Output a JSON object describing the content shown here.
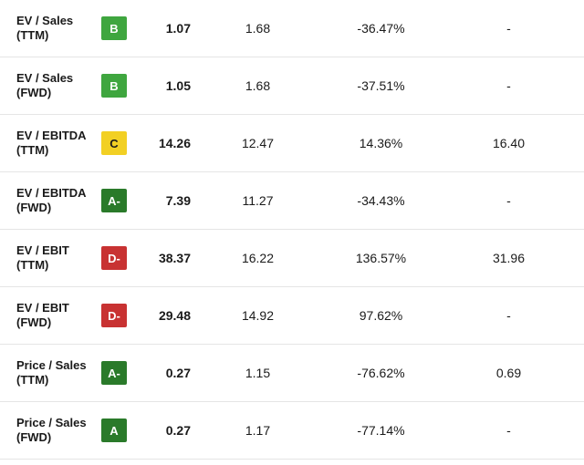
{
  "grade_colors": {
    "B": {
      "bg": "#3fa63f",
      "fg": "#ffffff"
    },
    "C": {
      "bg": "#f2d024",
      "fg": "#1a1a1a"
    },
    "A-": {
      "bg": "#2a7a2a",
      "fg": "#ffffff"
    },
    "A": {
      "bg": "#2a7a2a",
      "fg": "#ffffff"
    },
    "D-": {
      "bg": "#c83232",
      "fg": "#ffffff"
    }
  },
  "rows": [
    {
      "label": "EV / Sales (TTM)",
      "grade": "B",
      "value": "1.07",
      "sector": "1.68",
      "diff": "-36.47%",
      "avg": "-"
    },
    {
      "label": "EV / Sales (FWD)",
      "grade": "B",
      "value": "1.05",
      "sector": "1.68",
      "diff": "-37.51%",
      "avg": "-"
    },
    {
      "label": "EV / EBITDA (TTM)",
      "grade": "C",
      "value": "14.26",
      "sector": "12.47",
      "diff": "14.36%",
      "avg": "16.40"
    },
    {
      "label": "EV / EBITDA (FWD)",
      "grade": "A-",
      "value": "7.39",
      "sector": "11.27",
      "diff": "-34.43%",
      "avg": "-"
    },
    {
      "label": "EV / EBIT (TTM)",
      "grade": "D-",
      "value": "38.37",
      "sector": "16.22",
      "diff": "136.57%",
      "avg": "31.96"
    },
    {
      "label": "EV / EBIT (FWD)",
      "grade": "D-",
      "value": "29.48",
      "sector": "14.92",
      "diff": "97.62%",
      "avg": "-"
    },
    {
      "label": "Price / Sales (TTM)",
      "grade": "A-",
      "value": "0.27",
      "sector": "1.15",
      "diff": "-76.62%",
      "avg": "0.69"
    },
    {
      "label": "Price / Sales (FWD)",
      "grade": "A",
      "value": "0.27",
      "sector": "1.17",
      "diff": "-77.14%",
      "avg": "-"
    }
  ]
}
